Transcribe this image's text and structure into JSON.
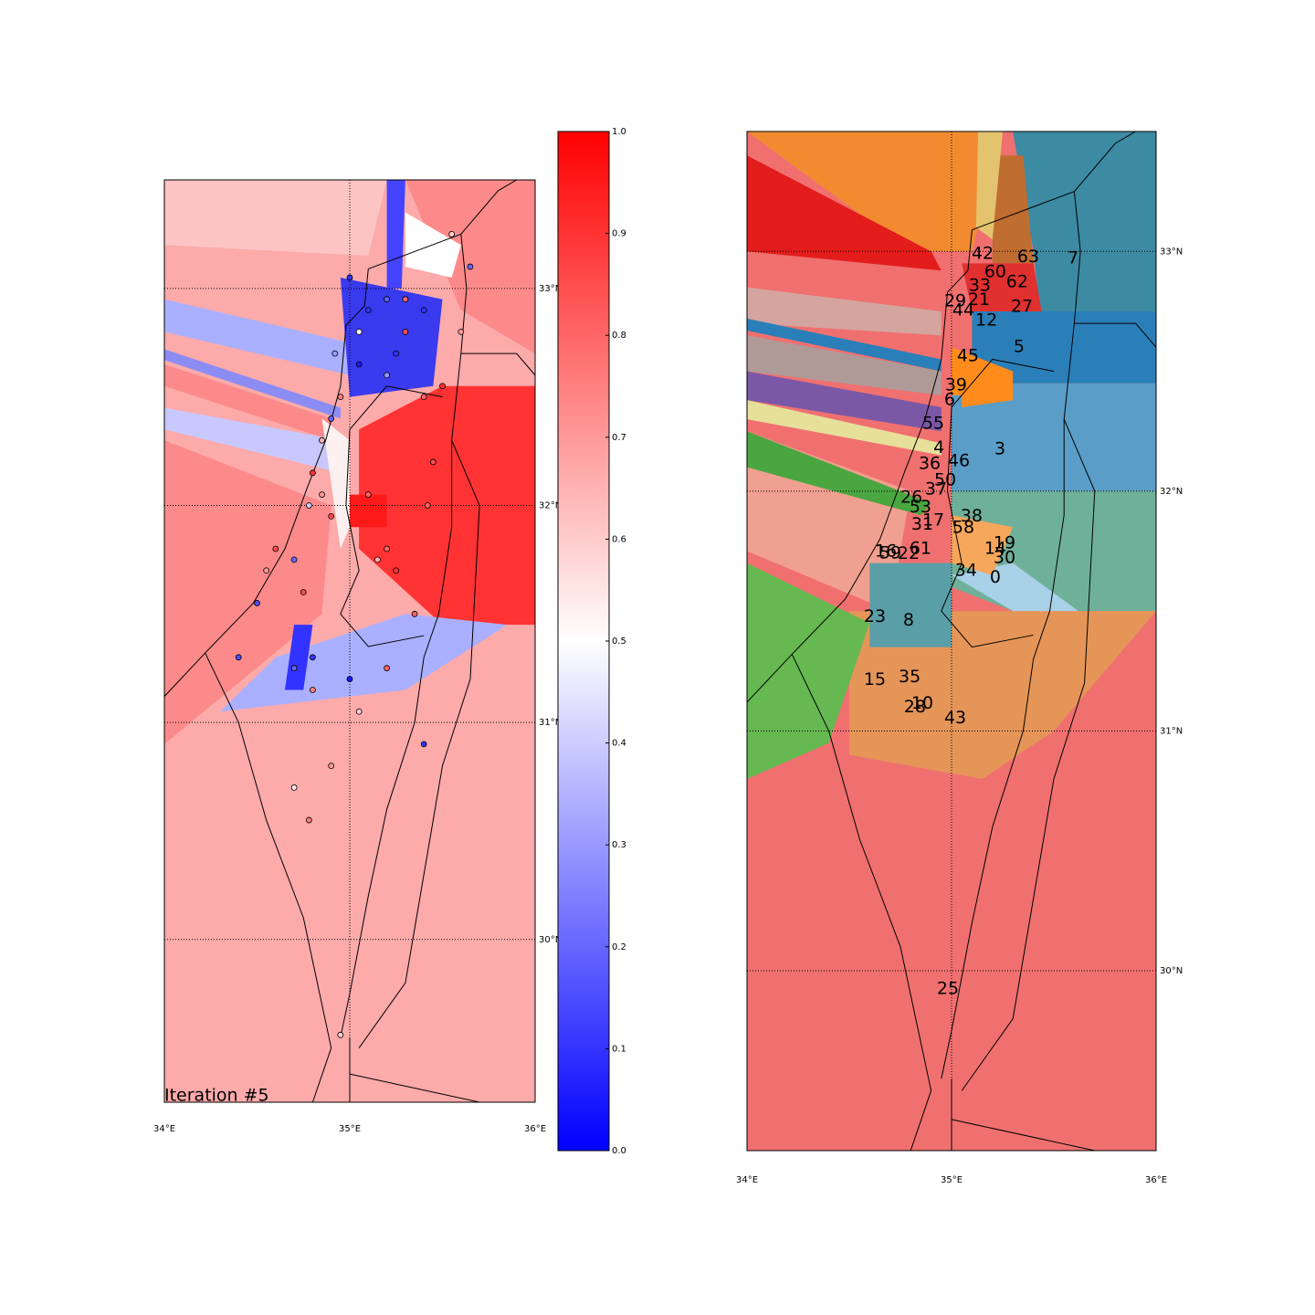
{
  "chart_data": [
    {
      "type": "map",
      "annotation": "Iteration #5",
      "xlim": [
        34,
        36
      ],
      "ylim": [
        29.25,
        33.5
      ],
      "xticks": [
        {
          "value": 34,
          "label": "34°E"
        },
        {
          "value": 35,
          "label": "35°E"
        },
        {
          "value": 36,
          "label": "36°E"
        }
      ],
      "yticks": [
        {
          "value": 30,
          "label": "30°N"
        },
        {
          "value": 31,
          "label": "31°N"
        },
        {
          "value": 32,
          "label": "32°N"
        },
        {
          "value": 33,
          "label": "33°N"
        }
      ],
      "grid": true,
      "colormap": [
        "#0000ff",
        "#ffffff",
        "#ff0000"
      ],
      "colorbar": {
        "lim": [
          0,
          1
        ],
        "ticks": [
          {
            "value": 0,
            "label": "0.0"
          },
          0.1,
          0.2,
          0.3,
          0.4,
          0.5,
          0.6,
          0.7,
          0.8,
          0.9,
          {
            "value": 1,
            "label": "1.0"
          }
        ]
      },
      "points": {
        "lon": [
          35.55,
          35.65,
          35.6,
          35.4,
          35.3,
          35.2,
          35.1,
          35.05,
          35.25,
          35.3,
          35.05,
          35.2,
          35.4,
          34.95,
          34.9,
          34.85,
          34.8,
          34.85,
          34.78,
          34.9,
          35.1,
          35.2,
          35.15,
          35.25,
          35.45,
          35.42,
          34.6,
          34.55,
          34.7,
          34.5,
          34.75,
          34.8,
          34.7,
          34.8,
          35.0,
          35.2,
          35.05,
          34.9,
          34.7,
          34.78,
          35.4,
          34.4,
          34.95,
          35.0,
          34.92,
          35.5,
          35.35
        ],
        "lat": [
          33.25,
          33.1,
          32.8,
          32.9,
          32.95,
          32.95,
          32.9,
          32.8,
          32.7,
          32.8,
          32.65,
          32.6,
          32.5,
          32.5,
          32.4,
          32.3,
          32.15,
          32.05,
          32.0,
          31.95,
          32.05,
          31.8,
          31.75,
          31.7,
          32.2,
          32.0,
          31.8,
          31.7,
          31.75,
          31.55,
          31.6,
          31.3,
          31.25,
          31.15,
          31.2,
          31.25,
          31.05,
          30.8,
          30.7,
          30.55,
          30.9,
          31.3,
          29.56,
          33.05,
          32.7,
          32.55,
          31.5
        ],
        "values": [
          0.6,
          0.2,
          0.7,
          0.1,
          0.8,
          0.2,
          0.1,
          0.5,
          0.1,
          0.85,
          0.05,
          0.3,
          0.8,
          0.75,
          0.2,
          0.65,
          0.9,
          0.7,
          0.4,
          0.85,
          0.8,
          0.8,
          0.65,
          0.9,
          0.85,
          0.8,
          0.85,
          0.7,
          0.2,
          0.15,
          0.85,
          0.1,
          0.2,
          0.75,
          0.05,
          0.8,
          0.6,
          0.7,
          0.55,
          0.75,
          0.1,
          0.15,
          0.6,
          0.1,
          0.3,
          0.9,
          0.8
        ]
      }
    },
    {
      "type": "map",
      "xlim": [
        34,
        36
      ],
      "ylim": [
        29.25,
        33.5
      ],
      "xticks": [
        {
          "value": 34,
          "label": "34°E"
        },
        {
          "value": 35,
          "label": "35°E"
        },
        {
          "value": 36,
          "label": "36°E"
        }
      ],
      "yticks": [
        {
          "value": 30,
          "label": "30°N"
        },
        {
          "value": 31,
          "label": "31°N"
        },
        {
          "value": 32,
          "label": "32°N"
        },
        {
          "value": 33,
          "label": "33°N"
        }
      ],
      "grid": true,
      "regions": {
        "labels": [
          "42",
          "63",
          "7",
          "60",
          "33",
          "62",
          "29",
          "21",
          "27",
          "44",
          "12",
          "5",
          "45",
          "39",
          "6",
          "55",
          "3",
          "4",
          "36",
          "46",
          "50",
          "37",
          "26",
          "53",
          "17",
          "38",
          "31",
          "58",
          "19",
          "16",
          "61",
          "59",
          "22",
          "14",
          "30",
          "34",
          "0",
          "23",
          "8",
          "15",
          "35",
          "10",
          "28",
          "43",
          "25"
        ],
        "lon": [
          35.152,
          35.375,
          35.594,
          35.214,
          35.138,
          35.321,
          35.018,
          35.134,
          35.344,
          35.058,
          35.17,
          35.33,
          35.08,
          35.022,
          34.991,
          34.911,
          35.237,
          34.938,
          34.893,
          35.036,
          34.969,
          34.924,
          34.804,
          34.848,
          34.911,
          35.098,
          34.857,
          35.058,
          35.259,
          34.679,
          34.848,
          34.701,
          34.79,
          35.214,
          35.259,
          35.071,
          35.214,
          34.625,
          34.79,
          34.625,
          34.795,
          34.857,
          34.821,
          35.018,
          34.982
        ],
        "lat": [
          32.989,
          32.977,
          32.97,
          32.913,
          32.856,
          32.871,
          32.791,
          32.798,
          32.768,
          32.753,
          32.711,
          32.601,
          32.563,
          32.441,
          32.38,
          32.281,
          32.174,
          32.181,
          32.114,
          32.125,
          32.046,
          32.008,
          31.973,
          31.932,
          31.878,
          31.894,
          31.86,
          31.848,
          31.783,
          31.749,
          31.76,
          31.741,
          31.738,
          31.76,
          31.722,
          31.669,
          31.639,
          31.475,
          31.46,
          31.213,
          31.224,
          31.114,
          31.099,
          31.054,
          29.924
        ]
      }
    }
  ]
}
